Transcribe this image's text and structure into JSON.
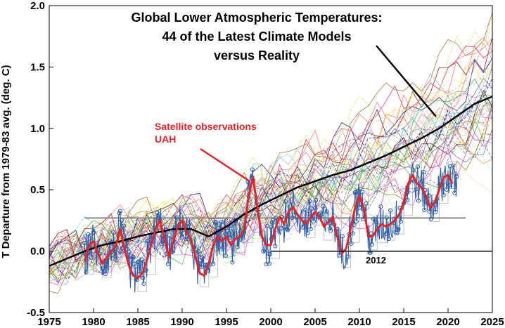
{
  "chart_data": {
    "type": "line",
    "title_lines": [
      "Global Lower Atmospheric Temperatures:",
      "44 of the Latest Climate Models",
      "versus Reality"
    ],
    "ylabel": "T Departure from 1979-83 avg. (deg. C)",
    "xlabel": "",
    "xlim": [
      1975,
      2025
    ],
    "ylim": [
      -0.5,
      2.0
    ],
    "x_ticks": [
      "1975",
      "1980",
      "1985",
      "1990",
      "1995",
      "2000",
      "2005",
      "2010",
      "2015",
      "2020",
      "2025"
    ],
    "y_ticks": [
      "-0.5",
      "0.0",
      "0.5",
      "1.0",
      "1.5",
      "2.0"
    ],
    "grid": false,
    "annotations": [
      {
        "text_lines": [
          "Satellite observations",
          "UAH"
        ],
        "color": "#e0262b"
      },
      {
        "text": "2012"
      }
    ],
    "model_mean": {
      "color": "#000000",
      "x": [
        1975,
        1977,
        1979,
        1981,
        1983,
        1985,
        1987,
        1989,
        1991,
        1993,
        1995,
        1997,
        1999,
        2001,
        2003,
        2005,
        2007,
        2009,
        2011,
        2013,
        2015,
        2017,
        2019,
        2021,
        2023,
        2025
      ],
      "y": [
        -0.12,
        -0.06,
        0.0,
        0.05,
        0.08,
        0.12,
        0.15,
        0.18,
        0.18,
        0.12,
        0.2,
        0.3,
        0.38,
        0.45,
        0.52,
        0.57,
        0.62,
        0.66,
        0.72,
        0.78,
        0.85,
        0.92,
        1.0,
        1.1,
        1.2,
        1.26
      ]
    },
    "observations_smoothed": {
      "color": "#e0262b",
      "x": [
        1979.0,
        1979.5,
        1980.0,
        1980.5,
        1981.0,
        1981.5,
        1982.0,
        1982.5,
        1983.0,
        1983.5,
        1984.0,
        1984.5,
        1985.0,
        1985.5,
        1986.0,
        1986.5,
        1987.0,
        1987.5,
        1988.0,
        1988.5,
        1989.0,
        1989.5,
        1990.0,
        1990.5,
        1991.0,
        1991.5,
        1992.0,
        1992.5,
        1993.0,
        1993.5,
        1994.0,
        1994.5,
        1995.0,
        1995.5,
        1996.0,
        1996.5,
        1997.0,
        1997.5,
        1998.0,
        1998.5,
        1999.0,
        1999.5,
        2000.0,
        2000.5,
        2001.0,
        2001.5,
        2002.0,
        2002.5,
        2003.0,
        2003.5,
        2004.0,
        2004.5,
        2005.0,
        2005.5,
        2006.0,
        2006.5,
        2007.0,
        2007.5,
        2008.0,
        2008.5,
        2009.0,
        2009.5,
        2010.0,
        2010.5,
        2011.0,
        2011.5,
        2012.0,
        2012.5,
        2013.0,
        2013.5,
        2014.0,
        2014.5,
        2015.0,
        2015.5,
        2016.0,
        2016.5,
        2017.0,
        2017.5,
        2018.0,
        2018.5,
        2019.0,
        2019.5,
        2020.0,
        2020.5
      ],
      "y": [
        -0.08,
        0.05,
        0.08,
        -0.02,
        -0.1,
        -0.05,
        0.0,
        0.04,
        0.18,
        0.02,
        -0.12,
        -0.2,
        -0.22,
        -0.18,
        -0.08,
        0.05,
        0.18,
        0.25,
        0.1,
        -0.05,
        0.08,
        0.2,
        0.25,
        0.15,
        0.1,
        -0.05,
        -0.18,
        -0.2,
        -0.1,
        0.05,
        0.12,
        0.08,
        0.12,
        0.05,
        0.1,
        0.12,
        0.18,
        0.45,
        0.6,
        0.35,
        0.12,
        0.05,
        0.05,
        0.18,
        0.28,
        0.22,
        0.32,
        0.36,
        0.3,
        0.25,
        0.22,
        0.28,
        0.32,
        0.28,
        0.2,
        0.24,
        0.28,
        0.12,
        -0.02,
        0.02,
        0.18,
        0.35,
        0.45,
        0.35,
        0.12,
        0.12,
        0.18,
        0.22,
        0.2,
        0.22,
        0.25,
        0.3,
        0.4,
        0.55,
        0.62,
        0.55,
        0.52,
        0.45,
        0.35,
        0.4,
        0.5,
        0.6,
        0.62,
        0.55
      ]
    },
    "observations_monthly_color": "#2f5fa8",
    "models_count": 44,
    "model_colors": [
      "#e6194b",
      "#3cb44b",
      "#ffe119",
      "#4363d8",
      "#f58231",
      "#911eb4",
      "#42d4f4",
      "#f032e6",
      "#bfef45",
      "#fabed4",
      "#469990",
      "#dcbeff",
      "#9a6324",
      "#800000",
      "#aaffc3",
      "#808000",
      "#ffd8b1",
      "#000075",
      "#a9a9a9",
      "#ff6f61",
      "#6b5b95",
      "#88b04b"
    ]
  }
}
